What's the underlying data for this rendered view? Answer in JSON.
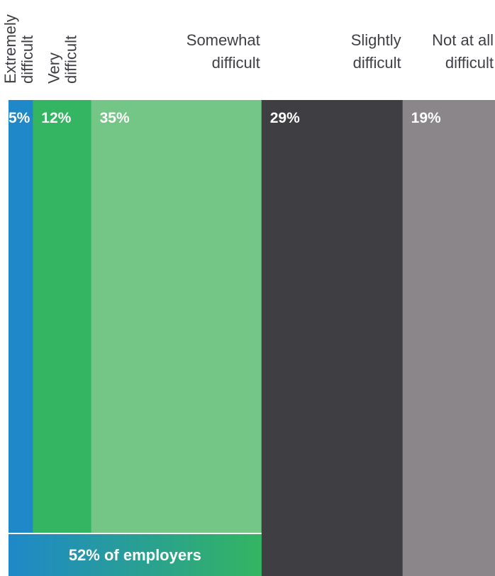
{
  "chart_data": {
    "type": "bar",
    "subtype": "100%-stacked-horizontal-strip",
    "categories": [
      "Extremely difficult",
      "Very difficult",
      "Somewhat difficult",
      "Slightly difficult",
      "Not at all difficult"
    ],
    "values": [
      5,
      12,
      35,
      29,
      19
    ],
    "value_labels": [
      "5%",
      "12%",
      "35%",
      "29%",
      "19%"
    ],
    "colors": [
      "#1e88c9",
      "#33b561",
      "#74c687",
      "#3e3e43",
      "#8b8689"
    ],
    "label_colors": [
      "#ffffff",
      "#ffffff",
      "#ffffff",
      "#ffffff",
      "#ffffff"
    ],
    "summary": {
      "text": "52% of employers",
      "spans_categories": [
        0,
        1,
        2
      ],
      "gradient": [
        "#1e88c9",
        "#33b561"
      ]
    },
    "legend": "none",
    "grid": false
  }
}
